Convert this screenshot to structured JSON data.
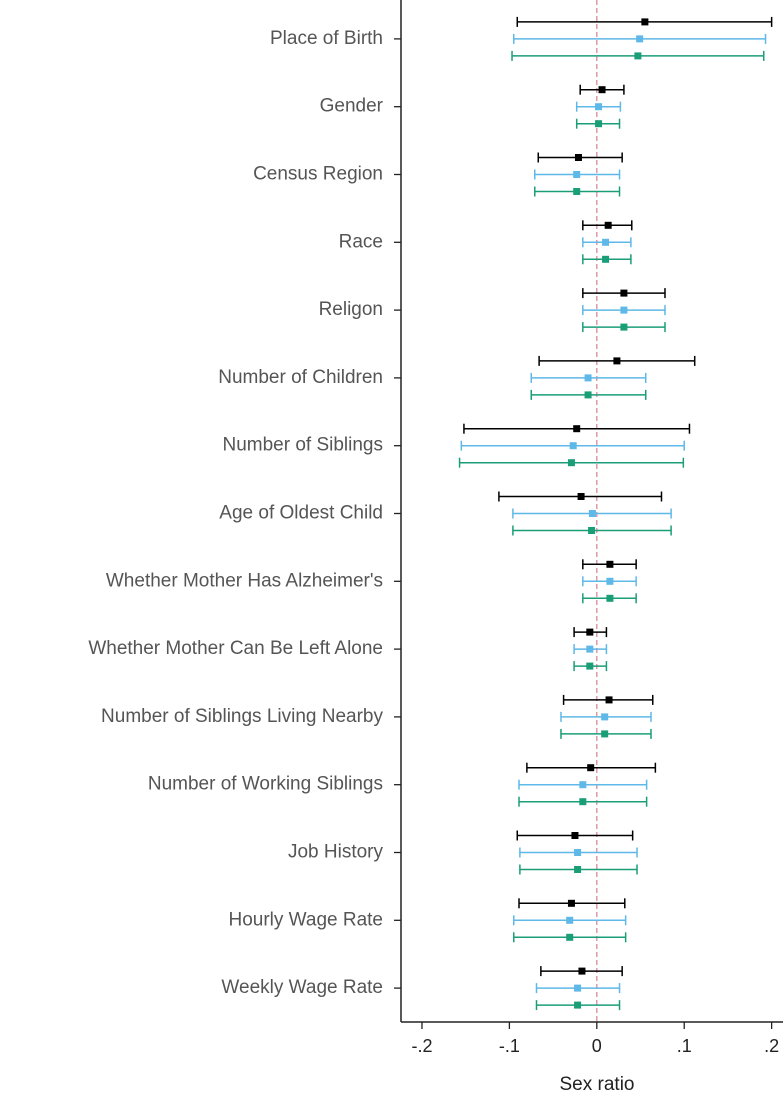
{
  "chart_data": {
    "type": "errorbar",
    "x_label": "Sex ratio",
    "categories": [
      "Place of Birth",
      "Gender",
      "Census Region",
      "Race",
      "Religon",
      "Number of Children",
      "Number of Siblings",
      "Age of Oldest Child",
      "Whether Mother Has Alzheimer's",
      "Whether Mother Can Be Left Alone",
      "Number of Siblings Living Nearby",
      "Number of Working Siblings",
      "Job History",
      "Hourly Wage Rate",
      "Weekly Wage Rate"
    ],
    "series": [
      {
        "color": "#000000",
        "values": [
          0.055,
          0.006,
          -0.021,
          0.013,
          0.031,
          0.023,
          -0.023,
          -0.018,
          0.015,
          -0.008,
          0.014,
          -0.007,
          -0.025,
          -0.029,
          -0.017
        ],
        "lower": [
          -0.091,
          -0.019,
          -0.067,
          -0.016,
          -0.016,
          -0.066,
          -0.152,
          -0.112,
          -0.016,
          -0.026,
          -0.038,
          -0.08,
          -0.091,
          -0.089,
          -0.064
        ],
        "upper": [
          0.2,
          0.031,
          0.029,
          0.04,
          0.078,
          0.112,
          0.106,
          0.074,
          0.045,
          0.011,
          0.064,
          0.067,
          0.041,
          0.032,
          0.029
        ]
      },
      {
        "color": "#5eb8e8",
        "values": [
          0.049,
          0.002,
          -0.023,
          0.01,
          0.031,
          -0.01,
          -0.027,
          -0.005,
          0.015,
          -0.008,
          0.009,
          -0.016,
          -0.022,
          -0.031,
          -0.022
        ],
        "lower": [
          -0.095,
          -0.023,
          -0.071,
          -0.016,
          -0.016,
          -0.075,
          -0.155,
          -0.096,
          -0.016,
          -0.026,
          -0.041,
          -0.089,
          -0.088,
          -0.095,
          -0.069
        ],
        "upper": [
          0.193,
          0.027,
          0.026,
          0.039,
          0.078,
          0.056,
          0.1,
          0.085,
          0.045,
          0.011,
          0.062,
          0.057,
          0.046,
          0.033,
          0.026
        ]
      },
      {
        "color": "#1a9e77",
        "values": [
          0.047,
          0.002,
          -0.023,
          0.01,
          0.031,
          -0.01,
          -0.029,
          -0.006,
          0.015,
          -0.008,
          0.009,
          -0.016,
          -0.022,
          -0.031,
          -0.022
        ],
        "lower": [
          -0.097,
          -0.023,
          -0.071,
          -0.016,
          -0.016,
          -0.075,
          -0.157,
          -0.096,
          -0.016,
          -0.026,
          -0.041,
          -0.089,
          -0.088,
          -0.095,
          -0.069
        ],
        "upper": [
          0.191,
          0.026,
          0.026,
          0.039,
          0.078,
          0.056,
          0.099,
          0.085,
          0.045,
          0.011,
          0.062,
          0.057,
          0.046,
          0.033,
          0.026
        ]
      }
    ],
    "xlim": [
      -0.224,
      0.213
    ],
    "xticks": [
      {
        "value": -0.2,
        "label": "-.2"
      },
      {
        "value": -0.1,
        "label": "-.1"
      },
      0,
      {
        "value": 0.1,
        "label": ".1"
      },
      {
        "value": 0.2,
        "label": ".2"
      }
    ],
    "reference_line": 0,
    "reference_color": "#d88a9a"
  }
}
